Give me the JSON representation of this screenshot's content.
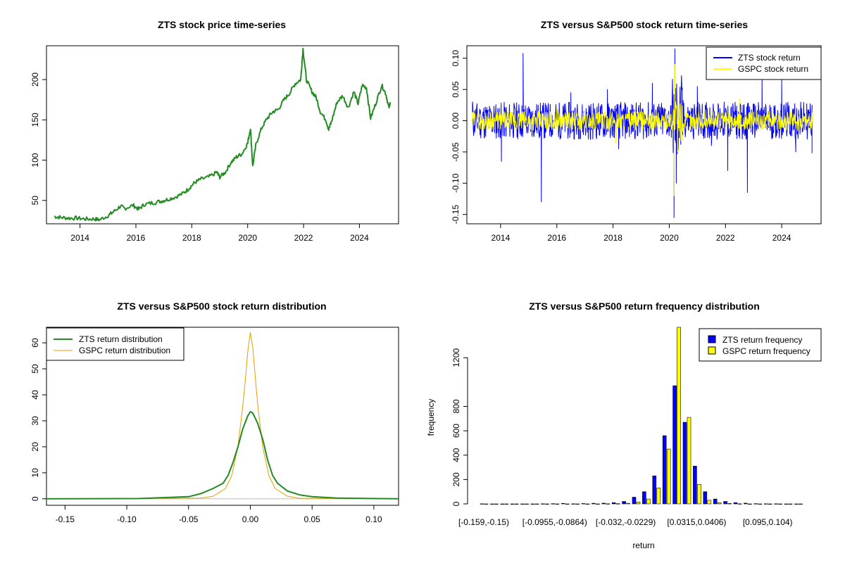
{
  "colors": {
    "zts_price": "#228B22",
    "zts_return": "#0000FF",
    "gspc_return": "#FFFF00",
    "zts_density": "#228B22",
    "gspc_density": "#E69F00",
    "axis": "#000000"
  },
  "chart_data": [
    {
      "type": "line",
      "title": "ZTS stock price time-series",
      "xlabel": "",
      "ylabel": "",
      "xlim": [
        2012.8,
        2025.4
      ],
      "ylim": [
        21,
        242
      ],
      "x_ticks": [
        "2014",
        "2016",
        "2018",
        "2020",
        "2022",
        "2024"
      ],
      "y_ticks": [
        "50",
        "100",
        "150",
        "200"
      ],
      "series": [
        {
          "x": [
            2013.08,
            2013.3,
            2013.6,
            2013.9,
            2014.2,
            2014.5,
            2014.7,
            2015.0,
            2015.2,
            2015.45,
            2015.6,
            2015.9,
            2016.1,
            2016.3,
            2016.6,
            2016.9,
            2017.1,
            2017.4,
            2017.7,
            2017.9,
            2018.1,
            2018.3,
            2018.6,
            2018.9,
            2019.0,
            2019.2,
            2019.4,
            2019.6,
            2019.8,
            2020.0,
            2020.1,
            2020.18,
            2020.3,
            2020.5,
            2020.7,
            2020.9,
            2021.1,
            2021.3,
            2021.5,
            2021.7,
            2021.9,
            2021.98,
            2022.1,
            2022.3,
            2022.45,
            2022.6,
            2022.8,
            2022.9,
            2023.0,
            2023.2,
            2023.4,
            2023.6,
            2023.8,
            2023.95,
            2024.1,
            2024.25,
            2024.4,
            2024.6,
            2024.8,
            2024.95,
            2025.05,
            2025.1
          ],
          "y": [
            30,
            29,
            28,
            28,
            27,
            27,
            26,
            31,
            36,
            43,
            40,
            44,
            39,
            45,
            47,
            49,
            51,
            54,
            59,
            65,
            72,
            76,
            79,
            85,
            79,
            85,
            97,
            104,
            108,
            121,
            140,
            92,
            120,
            140,
            152,
            160,
            163,
            175,
            183,
            195,
            200,
            238,
            200,
            185,
            178,
            160,
            150,
            138,
            148,
            172,
            180,
            165,
            185,
            170,
            193,
            190,
            152,
            172,
            193,
            182,
            165,
            172
          ]
        }
      ]
    },
    {
      "type": "line",
      "title": "ZTS versus S&P500 stock return time-series",
      "xlabel": "",
      "ylabel": "",
      "xlim": [
        2012.8,
        2025.4
      ],
      "ylim": [
        -0.165,
        0.12
      ],
      "x_ticks": [
        "2014",
        "2016",
        "2018",
        "2020",
        "2022",
        "2024"
      ],
      "y_ticks": [
        "-0.15",
        "-0.10",
        "-0.05",
        "0.00",
        "0.05",
        "0.10"
      ],
      "legend": "top-right",
      "series": [
        {
          "name": "ZTS stock return",
          "x": [
            2013.0,
            2014.03,
            2014.8,
            2015.45,
            2016.5,
            2017.2,
            2017.8,
            2018.2,
            2019.4,
            2020.17,
            2020.2,
            2020.25,
            2021.0,
            2021.5,
            2022.08,
            2022.78,
            2023.3,
            2024.0,
            2024.5,
            2025.08
          ],
          "y": [
            0.03,
            -0.065,
            0.108,
            -0.13,
            0.045,
            -0.03,
            0.05,
            -0.045,
            0.06,
            -0.155,
            0.115,
            -0.1,
            0.055,
            -0.04,
            -0.08,
            -0.115,
            0.07,
            0.065,
            -0.05,
            -0.052
          ]
        },
        {
          "name": "GSPC stock return",
          "x": [
            2013.0,
            2014.5,
            2016.0,
            2018.1,
            2019.0,
            2020.17,
            2020.2,
            2020.3,
            2021.5,
            2022.5,
            2023.5,
            2025.1
          ],
          "y": [
            0.012,
            -0.015,
            0.02,
            -0.035,
            0.015,
            -0.12,
            0.09,
            -0.05,
            0.02,
            0.035,
            0.015,
            0.015
          ]
        }
      ]
    },
    {
      "type": "line",
      "title": "ZTS versus S&P500 stock return distribution",
      "xlabel": "",
      "ylabel": "",
      "xlim": [
        -0.165,
        0.12
      ],
      "ylim": [
        -2.5,
        66
      ],
      "x_ticks": [
        "-0.15",
        "-0.10",
        "-0.05",
        "0.00",
        "0.05",
        "0.10"
      ],
      "y_ticks": [
        "0",
        "10",
        "20",
        "30",
        "40",
        "50",
        "60"
      ],
      "legend": "top-left",
      "series": [
        {
          "name": "ZTS return distribution",
          "x": [
            -0.165,
            -0.09,
            -0.05,
            -0.04,
            -0.03,
            -0.022,
            -0.018,
            -0.014,
            -0.01,
            -0.006,
            -0.002,
            0.0,
            0.002,
            0.006,
            0.01,
            0.014,
            0.018,
            0.022,
            0.03,
            0.04,
            0.05,
            0.07,
            0.12
          ],
          "y": [
            0,
            0.1,
            0.8,
            2,
            4,
            6,
            9,
            14,
            20,
            27,
            32,
            33.5,
            33,
            29,
            23,
            15,
            9,
            6,
            3,
            1.5,
            0.8,
            0.3,
            0
          ]
        },
        {
          "name": "GSPC return distribution",
          "x": [
            -0.165,
            -0.12,
            -0.04,
            -0.03,
            -0.02,
            -0.015,
            -0.01,
            -0.006,
            -0.004,
            -0.002,
            0.0,
            0.002,
            0.004,
            0.006,
            0.01,
            0.015,
            0.02,
            0.03,
            0.04,
            0.12
          ],
          "y": [
            0,
            0,
            0.3,
            1,
            4,
            9,
            20,
            36,
            46,
            57,
            64,
            58,
            47,
            36,
            20,
            9,
            4,
            1,
            0.2,
            0
          ]
        }
      ]
    },
    {
      "type": "bar",
      "title": "ZTS versus S&P500 return frequency distribution",
      "xlabel": "return",
      "ylabel": "frequency",
      "ylim": [
        0,
        1450
      ],
      "y_ticks": [
        "0",
        "200",
        "400",
        "600",
        "800",
        "1200"
      ],
      "x_tick_labels": [
        {
          "label": "[-0.159,-0.15)",
          "index": 0
        },
        {
          "label": "[-0.0955,-0.0864)",
          "index": 7
        },
        {
          "label": "[-0.032,-0.0229)",
          "index": 14
        },
        {
          "label": "[0.0315,0.0406)",
          "index": 21
        },
        {
          "label": "[0.095,0.104)",
          "index": 28
        }
      ],
      "legend": "top-right",
      "series": [
        {
          "name": "ZTS return frequency",
          "values": [
            1,
            0,
            0,
            0,
            0,
            0,
            1,
            2,
            4,
            1,
            3,
            5,
            6,
            10,
            20,
            55,
            100,
            230,
            560,
            970,
            670,
            310,
            100,
            40,
            20,
            10,
            6,
            2,
            1,
            1,
            0,
            0
          ]
        },
        {
          "name": "GSPC return frequency",
          "values": [
            0,
            0,
            0,
            0,
            0,
            0,
            0,
            0,
            0,
            0,
            0,
            0,
            1,
            2,
            5,
            15,
            40,
            130,
            450,
            1450,
            710,
            160,
            30,
            10,
            3,
            1,
            0,
            0,
            0,
            0,
            0,
            0
          ]
        }
      ]
    }
  ]
}
